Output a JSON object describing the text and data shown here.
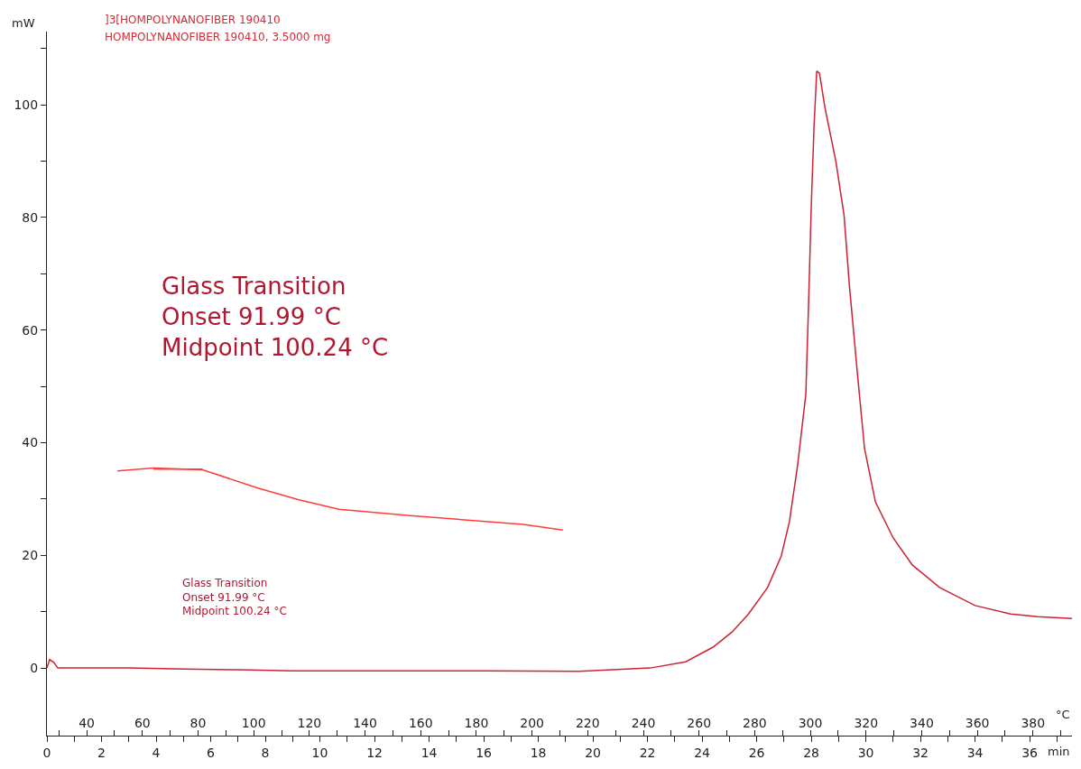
{
  "chart_data": {
    "type": "line",
    "title": "]3[HOMPOLYNANOFIBER 190410",
    "subtitle": "HOMPOLYNANOFIBER 190410, 3.5000 mg",
    "xlabel": "min",
    "x2label": "°C",
    "ylabel": "mW",
    "xlim": [
      0,
      37.55
    ],
    "xticks": [
      0,
      {
        "value": 1,
        "label": null
      },
      2,
      {
        "value": 3,
        "label": null
      },
      4,
      {
        "value": 5,
        "label": null
      },
      6,
      {
        "value": 7,
        "label": null
      },
      8,
      {
        "value": 9,
        "label": null
      },
      10,
      {
        "value": 11,
        "label": null
      },
      12,
      {
        "value": 13,
        "label": null
      },
      14,
      {
        "value": 15,
        "label": null
      },
      16,
      {
        "value": 17,
        "label": null
      },
      18,
      {
        "value": 19,
        "label": null
      },
      20,
      {
        "value": 21,
        "label": null
      },
      22,
      {
        "value": 23,
        "label": null
      },
      24,
      {
        "value": 25,
        "label": null
      },
      26,
      {
        "value": 27,
        "label": null
      },
      28,
      {
        "value": 29,
        "label": null
      },
      30,
      {
        "value": 31,
        "label": null
      },
      32,
      {
        "value": 33,
        "label": null
      },
      34,
      {
        "value": 35,
        "label": null
      },
      36,
      {
        "value": 37,
        "label": null
      }
    ],
    "x2lim": [
      25.7,
      394
    ],
    "x2ticks": [
      {
        "value": 30,
        "label": null
      },
      40,
      {
        "value": 50,
        "label": null
      },
      60,
      {
        "value": 70,
        "label": null
      },
      80,
      {
        "value": 90,
        "label": null
      },
      100,
      {
        "value": 110,
        "label": null
      },
      120,
      {
        "value": 130,
        "label": null
      },
      140,
      {
        "value": 150,
        "label": null
      },
      160,
      {
        "value": 170,
        "label": null
      },
      180,
      {
        "value": 190,
        "label": null
      },
      200,
      {
        "value": 210,
        "label": null
      },
      220,
      {
        "value": 230,
        "label": null
      },
      240,
      {
        "value": 250,
        "label": null
      },
      260,
      {
        "value": 270,
        "label": null
      },
      280,
      {
        "value": 290,
        "label": null
      },
      300,
      {
        "value": 310,
        "label": null
      },
      320,
      {
        "value": 330,
        "label": null
      },
      340,
      {
        "value": 350,
        "label": null
      },
      360,
      {
        "value": 370,
        "label": null
      },
      380,
      {
        "value": 390,
        "label": null
      }
    ],
    "ylim": [
      -12,
      113
    ],
    "yticks": [
      0,
      {
        "value": 10,
        "label": null
      },
      20,
      {
        "value": 30,
        "label": null
      },
      40,
      {
        "value": 50,
        "label": null
      },
      60,
      {
        "value": 70,
        "label": null
      },
      80,
      {
        "value": 90,
        "label": null
      },
      100,
      {
        "value": 110,
        "label": null
      }
    ],
    "marker": "none",
    "line_style": "solid",
    "series": [
      {
        "color": "#cc2233",
        "x": [
          0,
          0.1,
          0.25,
          0.4,
          3,
          5,
          7,
          9,
          12,
          16,
          19.5,
          22.1,
          23.4,
          24.4,
          25.1,
          25.7,
          26.4,
          26.9,
          27.2,
          27.5,
          27.8,
          27.9,
          28.0,
          28.1,
          28.2,
          28.3,
          28.5,
          28.9,
          29.2,
          29.4,
          29.7,
          29.95,
          30.35,
          31.0,
          31.7,
          32.7,
          34.0,
          35.3,
          36.3,
          37.55
        ],
        "values": [
          0,
          1.5,
          1,
          0,
          0,
          -0.2,
          -0.3,
          -0.5,
          -0.5,
          -0.5,
          -0.6,
          0,
          1.1,
          3.7,
          6.4,
          9.6,
          14.3,
          19.9,
          26,
          36,
          48.6,
          64.5,
          82,
          96,
          106,
          105.6,
          99.5,
          90,
          80.4,
          67.7,
          51.8,
          39,
          29.5,
          23.1,
          18.3,
          14.3,
          11.1,
          9.6,
          9.1,
          8.8
        ]
      },
      {
        "color": "#ff3b3b",
        "x": [
          2.58,
          3.9,
          5.7,
          7.7,
          9.2,
          10.7,
          13.2,
          17.45,
          18.9
        ],
        "values": [
          35.0,
          35.5,
          35.2,
          32,
          29.9,
          28.2,
          27.1,
          25.5,
          24.5
        ]
      },
      {
        "color": "#ff3b3b",
        "x": [
          3.9,
          5.7
        ],
        "values": [
          35.3,
          35.3
        ]
      }
    ],
    "annotations": [
      "Glass Transition\nOnset 91.99 °C\nMidpoint 100.24 °C",
      "Glass Transition\nOnset 91.99 °C\nMidpoint 100.24 °C"
    ]
  }
}
